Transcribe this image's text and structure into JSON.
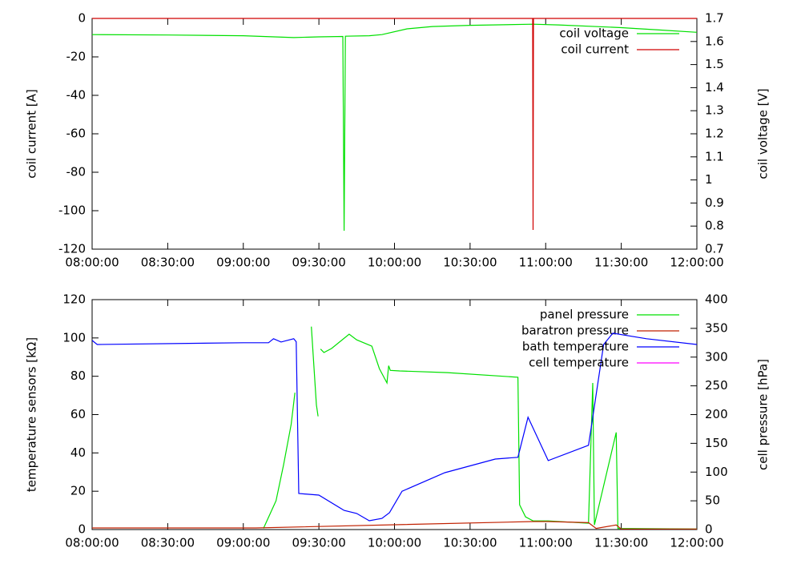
{
  "chart_data": [
    {
      "type": "line",
      "ylabel": "coil current [A]",
      "y2label": "coil voltage [V]",
      "xlim": [
        "08:00:00",
        "12:00:00"
      ],
      "xticks": [
        "08:00:00",
        "08:30:00",
        "09:00:00",
        "09:30:00",
        "10:00:00",
        "10:30:00",
        "11:00:00",
        "11:30:00",
        "12:00:00"
      ],
      "ylim": [
        -120,
        0
      ],
      "yticks": [
        -120,
        -100,
        -80,
        -60,
        -40,
        -20,
        0
      ],
      "y2lim": [
        0.7,
        1.7
      ],
      "y2ticks": [
        0.7,
        0.8,
        0.9,
        1,
        1.1,
        1.2,
        1.3,
        1.4,
        1.5,
        1.6,
        1.7
      ],
      "legend": "top-right",
      "series": [
        {
          "name": "coil voltage",
          "color": "#00e000",
          "axis": "y2",
          "x": [
            "08:00:00",
            "08:30:00",
            "09:00:00",
            "09:20:00",
            "09:30:00",
            "09:39:30",
            "09:40:00",
            "09:40:30",
            "09:50:00",
            "09:55:00",
            "10:05:00",
            "10:15:00",
            "10:30:00",
            "10:55:00",
            "11:05:00",
            "11:30:00",
            "11:45:00",
            "12:00:00"
          ],
          "values": [
            1.63,
            1.628,
            1.625,
            1.617,
            1.62,
            1.622,
            0.78,
            1.623,
            1.625,
            1.63,
            1.655,
            1.665,
            1.67,
            1.675,
            1.672,
            1.66,
            1.65,
            1.64
          ]
        },
        {
          "name": "coil current",
          "color": "#d00000",
          "x": [
            "08:00:00",
            "10:54:50",
            "10:55:00",
            "10:55:10",
            "12:00:00"
          ],
          "values": [
            0,
            0,
            -110,
            0,
            0
          ]
        }
      ]
    },
    {
      "type": "line",
      "ylabel": "temperature sensors [kΩ]",
      "y2label": "cell pressure [hPa]",
      "xlim": [
        "08:00:00",
        "12:00:00"
      ],
      "xticks": [
        "08:00:00",
        "08:30:00",
        "09:00:00",
        "09:30:00",
        "10:00:00",
        "10:30:00",
        "11:00:00",
        "11:30:00",
        "12:00:00"
      ],
      "ylim": [
        0,
        120
      ],
      "yticks": [
        0,
        20,
        40,
        60,
        80,
        100,
        120
      ],
      "y2lim": [
        0,
        400
      ],
      "y2ticks": [
        0,
        50,
        100,
        150,
        200,
        250,
        300,
        350,
        400
      ],
      "legend": "top-right",
      "series": [
        {
          "name": "panel pressure",
          "color": "#00e000",
          "axis": "y2",
          "x": [
            "09:08:00",
            "09:13:00",
            "09:16:00",
            "09:19:00",
            "09:20:30",
            null,
            "09:27:00",
            "09:29:00",
            "09:29:40",
            null,
            "09:30:40",
            "09:32:00",
            "09:35:00",
            "09:42:00",
            "09:45:00",
            "09:51:00",
            "09:54:00",
            "09:57:00",
            "09:57:40",
            "09:58:20",
            "10:02:00",
            "10:21:00",
            "10:49:00",
            "10:49:40",
            "10:52:00",
            "10:55:00",
            "11:01:00",
            "11:17:00",
            "11:18:40",
            "11:19:20",
            "11:28:00",
            "11:28:40",
            "12:00:00"
          ],
          "values": [
            2,
            50,
            113,
            183,
            238,
            null,
            353,
            217,
            197,
            null,
            314,
            308,
            315,
            340,
            330,
            319,
            280,
            255,
            285,
            277,
            276,
            273,
            265,
            43,
            22,
            15,
            15,
            11,
            255,
            8,
            169,
            2,
            1
          ]
        },
        {
          "name": "baratron pressure",
          "color": "#c02000",
          "axis": "y2",
          "x": [
            "08:00:00",
            "09:05:00",
            "10:55:00",
            "11:01:00",
            "11:17:00",
            "11:20:00",
            "11:28:00",
            "11:30:00",
            "12:00:00"
          ],
          "values": [
            2.8,
            2.8,
            14,
            14,
            12,
            2,
            8,
            1,
            1
          ]
        },
        {
          "name": "bath temperature",
          "color": "#0000ff",
          "x": [
            "08:00:00",
            "08:02:00",
            "09:00:00",
            "09:10:00",
            "09:12:00",
            "09:15:00",
            "09:20:00",
            "09:21:00",
            "09:22:00",
            "09:30:00",
            "09:40:00",
            "09:45:00",
            "09:50:00",
            "09:55:00",
            "09:58:00",
            "10:03:00",
            "10:20:00",
            "10:40:00",
            "10:49:00",
            "10:53:00",
            "11:01:00",
            "11:17:00",
            "11:18:00",
            "11:23:00",
            "11:26:40",
            "11:40:00",
            "12:00:00"
          ],
          "values": [
            98.7,
            96.6,
            97.5,
            97.5,
            99.6,
            97.9,
            99.6,
            98,
            18.8,
            18,
            10,
            8.4,
            4.6,
            5.8,
            8.8,
            20,
            29.7,
            36.8,
            37.7,
            58.6,
            36,
            44,
            52.7,
            96.6,
            102.5,
            99.6,
            96.6
          ]
        },
        {
          "name": "cell temperature",
          "color": "#ff00ff",
          "x": [],
          "values": []
        }
      ]
    }
  ]
}
